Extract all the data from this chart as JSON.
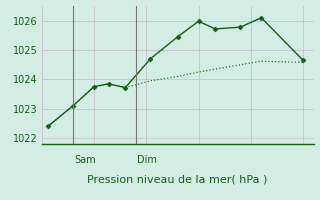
{
  "title": "Pression niveau de la mer( hPa )",
  "background_color": "#d4ede4",
  "grid_color": "#c8bcc8",
  "line1_color": "#1a5c1a",
  "line2_color": "#2d7a2d",
  "ylim": [
    1021.8,
    1026.5
  ],
  "yticks": [
    1022,
    1023,
    1024,
    1025,
    1026
  ],
  "xlim": [
    0,
    13
  ],
  "line1_x": [
    0.3,
    1.5,
    2.5,
    3.2,
    4.0,
    5.2,
    6.5,
    7.5,
    8.3,
    9.5,
    10.5,
    12.5
  ],
  "line1_y": [
    1022.4,
    1023.1,
    1023.75,
    1023.85,
    1023.72,
    1024.7,
    1025.45,
    1025.98,
    1025.72,
    1025.78,
    1026.1,
    1024.65
  ],
  "line2_x": [
    0.3,
    1.5,
    2.5,
    3.2,
    4.0,
    5.2,
    6.5,
    7.5,
    8.3,
    9.5,
    10.5,
    12.5
  ],
  "line2_y": [
    1022.4,
    1023.1,
    1023.75,
    1023.85,
    1023.72,
    1023.95,
    1024.1,
    1024.25,
    1024.35,
    1024.5,
    1024.62,
    1024.58
  ],
  "sam_x": 1.5,
  "dim_x": 4.5,
  "xlabel_fontsize": 8,
  "ytick_fontsize": 7,
  "sam_dim_fontsize": 7
}
